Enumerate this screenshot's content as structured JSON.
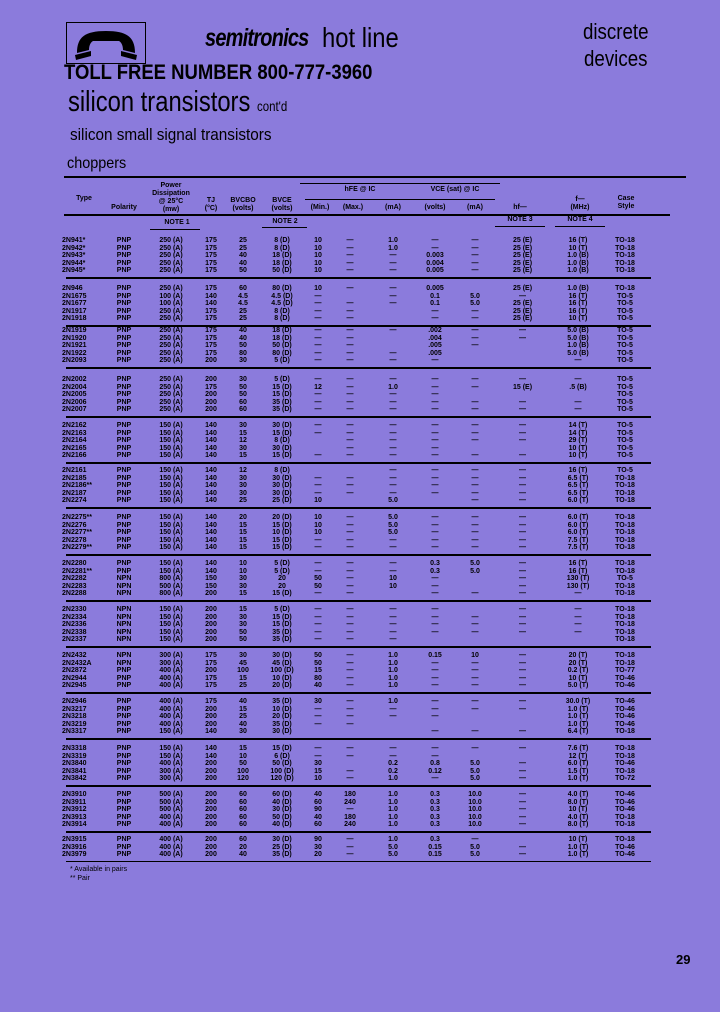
{
  "header": {
    "logo_icon": "telephone-handset-icon",
    "brand": "semitronics",
    "hotline": "hot line",
    "category_line1": "discrete",
    "category_line2": "devices",
    "toll_free": "TOLL FREE NUMBER 800-777-3960",
    "title": "silicon transistors",
    "title_suffix": "cont'd",
    "subtitle": "silicon small signal transistors",
    "section": "choppers"
  },
  "table": {
    "headers": {
      "type": "Type",
      "polarity": "Polarity",
      "pd": "Power Dissipation @ 25°C (mw)",
      "tj": "TJ (°C)",
      "bvcbo": "BVCBO (volts)",
      "bvceo": "BVCE (volts)",
      "hfe_group": "hFE @ IC",
      "hfe_min": "(Min.)",
      "hfe_max": "(Max.)",
      "hfe_ic": "(mA)",
      "vce_group": "VCE (sat) @ IC",
      "vce_volts": "(volts)",
      "vce_ic": "(mA)",
      "hfe_small": "hf—",
      "ft_group": "f—",
      "ft": "(MHz)",
      "case": "Case Style"
    },
    "notes": {
      "note1": "NOTE 1",
      "note2": "NOTE 2",
      "note3": "NOTE 3",
      "note4": "NOTE 4"
    },
    "groups": [
      [
        [
          "2N941*",
          "PNP",
          "250 (A)",
          "175",
          "25",
          "8 (D)",
          "10",
          "—",
          "1.0",
          "—",
          "—",
          "25 (E)",
          "16 (T)",
          "TO-18"
        ],
        [
          "2N942*",
          "PNP",
          "250 (A)",
          "175",
          "25",
          "8 (D)",
          "10",
          "—",
          "1.0",
          "—",
          "—",
          "25 (E)",
          "10 (T)",
          "TO-18"
        ],
        [
          "2N943*",
          "PNP",
          "250 (A)",
          "175",
          "40",
          "18 (D)",
          "10",
          "—",
          "—",
          "0.003",
          "—",
          "25 (E)",
          "1.0 (B)",
          "TO-18"
        ],
        [
          "2N944*",
          "PNP",
          "250 (A)",
          "175",
          "40",
          "18 (D)",
          "10",
          "—",
          "—",
          "0.004",
          "—",
          "25 (E)",
          "1.0 (B)",
          "TO-18"
        ],
        [
          "2N945*",
          "PNP",
          "250 (A)",
          "175",
          "50",
          "50 (D)",
          "10",
          "—",
          "—",
          "0.005",
          "—",
          "25 (E)",
          "1.0 (B)",
          "TO-18"
        ]
      ],
      [
        [
          "2N946",
          "PNP",
          "250 (A)",
          "175",
          "60",
          "80 (D)",
          "10",
          "—",
          "—",
          "0.005",
          "",
          "25 (E)",
          "1.0 (B)",
          "TO-18"
        ],
        [
          "2N1675",
          "PNP",
          "100 (A)",
          "140",
          "4.5",
          "4.5 (D)",
          "—",
          "",
          "—",
          "0.1",
          "5.0",
          "—",
          "16 (T)",
          "TO-5"
        ],
        [
          "2N1677",
          "PNP",
          "100 (A)",
          "140",
          "4.5",
          "4.5 (D)",
          "—",
          "—",
          "—",
          "0.1",
          "5.0",
          "25 (E)",
          "16 (T)",
          "TO-5"
        ],
        [
          "2N1917",
          "PNP",
          "250 (A)",
          "175",
          "25",
          "8 (D)",
          "—",
          "—",
          "",
          "—",
          "—",
          "25 (E)",
          "16 (T)",
          "TO-5"
        ],
        [
          "2N1918",
          "PNP",
          "250 (A)",
          "175",
          "25",
          "8 (D)",
          "—",
          "—",
          "",
          "—",
          "—",
          "25 (E)",
          "10 (T)",
          "TO-5"
        ]
      ],
      [
        [
          "2N1919",
          "PNP",
          "250 (A)",
          "175",
          "40",
          "18 (D)",
          "—",
          "—",
          "—",
          ".002",
          "—",
          "—",
          "5.0 (B)",
          "TO-5"
        ],
        [
          "2N1920",
          "PNP",
          "250 (A)",
          "175",
          "40",
          "18 (D)",
          "—",
          "—",
          "",
          ".004",
          "—",
          "—",
          "5.0 (B)",
          "TO-5"
        ],
        [
          "2N1921",
          "PNP",
          "250 (A)",
          "175",
          "50",
          "50 (D)",
          "—",
          "—",
          "",
          ".005",
          "—",
          "",
          "1.0 (B)",
          "TO-5"
        ],
        [
          "2N1922",
          "PNP",
          "250 (A)",
          "175",
          "80",
          "80 (D)",
          "—",
          "—",
          "—",
          ".005",
          "",
          "",
          "5.0 (B)",
          "TO-5"
        ],
        [
          "2N2093",
          "PNP",
          "250 (A)",
          "200",
          "30",
          "5 (D)",
          "—",
          "—",
          "—",
          "—",
          "",
          "",
          "—",
          "TO-5"
        ]
      ],
      [
        [
          "2N2002",
          "PNP",
          "250 (A)",
          "200",
          "30",
          "5 (D)",
          "—",
          "—",
          "—",
          "—",
          "—",
          "—",
          "—",
          "TO-5"
        ],
        [
          "2N2004",
          "PNP",
          "250 (A)",
          "175",
          "50",
          "15 (D)",
          "12",
          "—",
          "1.0",
          "—",
          "—",
          "15 (E)",
          ".5 (B)",
          "TO-5"
        ],
        [
          "2N2005",
          "PNP",
          "250 (A)",
          "200",
          "50",
          "15 (D)",
          "—",
          "—",
          "—",
          "—",
          "",
          "",
          "",
          "TO-5"
        ],
        [
          "2N2006",
          "PNP",
          "250 (A)",
          "200",
          "60",
          "35 (D)",
          "—",
          "—",
          "—",
          "—",
          "—",
          "—",
          "—",
          "TO-5"
        ],
        [
          "2N2007",
          "PNP",
          "250 (A)",
          "200",
          "60",
          "35 (D)",
          "—",
          "—",
          "—",
          "—",
          "—",
          "—",
          "—",
          "TO-5"
        ]
      ],
      [
        [
          "2N2162",
          "PNP",
          "150 (A)",
          "140",
          "30",
          "30 (D)",
          "—",
          "—",
          "—",
          "—",
          "—",
          "—",
          "14 (T)",
          "TO-5"
        ],
        [
          "2N2163",
          "PNP",
          "150 (A)",
          "140",
          "15",
          "15 (D)",
          "—",
          "—",
          "—",
          "—",
          "—",
          "—",
          "14 (T)",
          "TO-5"
        ],
        [
          "2N2164",
          "PNP",
          "150 (A)",
          "140",
          "12",
          "8 (D)",
          "",
          "—",
          "—",
          "—",
          "—",
          "—",
          "29 (T)",
          "TO-5"
        ],
        [
          "2N2165",
          "PNP",
          "150 (A)",
          "140",
          "30",
          "30 (D)",
          "",
          "—",
          "—",
          "—",
          "",
          "",
          "10 (T)",
          "TO-5"
        ],
        [
          "2N2166",
          "PNP",
          "150 (A)",
          "140",
          "15",
          "15 (D)",
          "—",
          "—",
          "—",
          "—",
          "—",
          "—",
          "10 (T)",
          "TO-5"
        ]
      ],
      [
        [
          "2N2161",
          "PNP",
          "150 (A)",
          "140",
          "12",
          "8 (D)",
          "",
          "",
          "—",
          "—",
          "—",
          "—",
          "16 (T)",
          "TO-5"
        ],
        [
          "2N2185",
          "PNP",
          "150 (A)",
          "140",
          "30",
          "30 (D)",
          "—",
          "—",
          "—",
          "—",
          "—",
          "—",
          "6.5 (T)",
          "TO-18"
        ],
        [
          "2N2186**",
          "PNP",
          "150 (A)",
          "140",
          "30",
          "30 (D)",
          "—",
          "—",
          "—",
          "—",
          "—",
          "—",
          "6.5 (T)",
          "TO-18"
        ],
        [
          "2N2187",
          "PNP",
          "150 (A)",
          "140",
          "30",
          "30 (D)",
          "—",
          "—",
          "—",
          "—",
          "—",
          "—",
          "6.5 (T)",
          "TO-18"
        ],
        [
          "2N2274",
          "PNP",
          "150 (A)",
          "140",
          "25",
          "25 (D)",
          "10",
          "",
          "5.0",
          "",
          "—",
          "—",
          "6.0 (T)",
          "TO-18"
        ]
      ],
      [
        [
          "2N2275**",
          "PNP",
          "150 (A)",
          "140",
          "20",
          "20 (D)",
          "10",
          "—",
          "5.0",
          "—",
          "—",
          "—",
          "6.0 (T)",
          "TO-18"
        ],
        [
          "2N2276",
          "PNP",
          "150 (A)",
          "140",
          "15",
          "15 (D)",
          "10",
          "—",
          "5.0",
          "—",
          "—",
          "—",
          "6.0 (T)",
          "TO-18"
        ],
        [
          "2N2277**",
          "PNP",
          "150 (A)",
          "140",
          "15",
          "10 (D)",
          "10",
          "—",
          "5.0",
          "—",
          "—",
          "—",
          "6.0 (T)",
          "TO-18"
        ],
        [
          "2N2278",
          "PNP",
          "150 (A)",
          "140",
          "15",
          "15 (D)",
          "—",
          "—",
          "—",
          "—",
          "—",
          "—",
          "7.5 (T)",
          "TO-18"
        ],
        [
          "2N2279**",
          "PNP",
          "150 (A)",
          "140",
          "15",
          "15 (D)",
          "—",
          "—",
          "—",
          "—",
          "—",
          "—",
          "7.5 (T)",
          "TO-18"
        ]
      ],
      [
        [
          "2N2280",
          "PNP",
          "150 (A)",
          "140",
          "10",
          "5 (D)",
          "—",
          "—",
          "—",
          "0.3",
          "5.0",
          "—",
          "16 (T)",
          "TO-18"
        ],
        [
          "2N2281**",
          "PNP",
          "150 (A)",
          "140",
          "10",
          "5 (D)",
          "—",
          "—",
          "—",
          "0.3",
          "5.0",
          "—",
          "16 (T)",
          "TO-18"
        ],
        [
          "2N2282",
          "NPN",
          "800 (A)",
          "150",
          "30",
          "20",
          "50",
          "—",
          "10",
          "—",
          "",
          "—",
          "130 (T)",
          "TO-5"
        ],
        [
          "2N2283",
          "NPN",
          "500 (A)",
          "150",
          "30",
          "20",
          "50",
          "—",
          "10",
          "—",
          "",
          "—",
          "130 (T)",
          "TO-18"
        ],
        [
          "2N2288",
          "NPN",
          "800 (A)",
          "200",
          "15",
          "15 (D)",
          "—",
          "—",
          "",
          "—",
          "—",
          "—",
          "—",
          "TO-18"
        ]
      ],
      [
        [
          "2N2330",
          "NPN",
          "150 (A)",
          "200",
          "15",
          "5 (D)",
          "—",
          "—",
          "—",
          "—",
          "",
          "—",
          "—",
          "TO-18"
        ],
        [
          "2N2334",
          "NPN",
          "150 (A)",
          "200",
          "30",
          "15 (D)",
          "—",
          "—",
          "—",
          "—",
          "—",
          "—",
          "—",
          "TO-18"
        ],
        [
          "2N2336",
          "NPN",
          "150 (A)",
          "200",
          "30",
          "15 (D)",
          "—",
          "—",
          "—",
          "—",
          "—",
          "—",
          "—",
          "TO-18"
        ],
        [
          "2N2338",
          "NPN",
          "150 (A)",
          "200",
          "50",
          "35 (D)",
          "—",
          "—",
          "—",
          "—",
          "—",
          "—",
          "—",
          "TO-18"
        ],
        [
          "2N2337",
          "NPN",
          "150 (A)",
          "200",
          "50",
          "35 (D)",
          "—",
          "—",
          "—",
          "",
          "",
          "",
          "",
          "TO-18"
        ]
      ],
      [
        [
          "2N2432",
          "NPN",
          "300 (A)",
          "175",
          "30",
          "30 (D)",
          "50",
          "—",
          "1.0",
          "0.15",
          "10",
          "—",
          "20 (T)",
          "TO-18"
        ],
        [
          "2N2432A",
          "NPN",
          "300 (A)",
          "175",
          "45",
          "45 (D)",
          "50",
          "—",
          "1.0",
          "—",
          "—",
          "—",
          "20 (T)",
          "TO-18"
        ],
        [
          "2N2872",
          "PNP",
          "400 (A)",
          "200",
          "100",
          "100 (D)",
          "15",
          "—",
          "1.0",
          "—",
          "—",
          "—",
          "0.2 (T)",
          "TO-77"
        ],
        [
          "2N2944",
          "PNP",
          "400 (A)",
          "175",
          "15",
          "10 (D)",
          "80",
          "—",
          "1.0",
          "—",
          "—",
          "—",
          "10 (T)",
          "TO-46"
        ],
        [
          "2N2945",
          "PNP",
          "400 (A)",
          "175",
          "25",
          "20 (D)",
          "40",
          "—",
          "1.0",
          "—",
          "—",
          "—",
          "5.0 (T)",
          "TO-46"
        ]
      ],
      [
        [
          "2N2946",
          "PNP",
          "400 (A)",
          "175",
          "40",
          "35 (D)",
          "30",
          "—",
          "1.0",
          "—",
          "—",
          "—",
          "30.0 (T)",
          "TO-46"
        ],
        [
          "2N3217",
          "PNP",
          "400 (A)",
          "200",
          "15",
          "10 (D)",
          "—",
          "—",
          "—",
          "—",
          "—",
          "—",
          "1.0 (T)",
          "TO-46"
        ],
        [
          "2N3218",
          "PNP",
          "400 (A)",
          "200",
          "25",
          "20 (D)",
          "—",
          "—",
          "—",
          "—",
          "",
          "",
          "1.0 (T)",
          "TO-46"
        ],
        [
          "2N3219",
          "PNP",
          "400 (A)",
          "200",
          "40",
          "35 (D)",
          "—",
          "—",
          "",
          "",
          "",
          "",
          "1.0 (T)",
          "TO-46"
        ],
        [
          "2N3317",
          "PNP",
          "150 (A)",
          "140",
          "30",
          "30 (D)",
          "",
          "",
          "",
          "—",
          "—",
          "—",
          "6.4 (T)",
          "TO-18"
        ]
      ],
      [
        [
          "2N3318",
          "PNP",
          "150 (A)",
          "140",
          "15",
          "15 (D)",
          "—",
          "—",
          "—",
          "—",
          "—",
          "—",
          "7.6 (T)",
          "TO-18"
        ],
        [
          "2N3319",
          "PNP",
          "150 (A)",
          "140",
          "10",
          "6 (D)",
          "—",
          "—",
          "—",
          "—",
          "",
          "",
          "12 (T)",
          "TO-18"
        ],
        [
          "2N3840",
          "PNP",
          "400 (A)",
          "200",
          "50",
          "50 (D)",
          "30",
          "",
          "0.2",
          "0.8",
          "5.0",
          "—",
          "6.0 (T)",
          "TO-46"
        ],
        [
          "2N3841",
          "PNP",
          "300 (A)",
          "200",
          "100",
          "100 (D)",
          "15",
          "—",
          "0.2",
          "0.12",
          "5.0",
          "—",
          "1.5 (T)",
          "TO-18"
        ],
        [
          "2N3842",
          "PNP",
          "300 (A)",
          "200",
          "120",
          "120 (D)",
          "10",
          "—",
          "1.0",
          "—",
          "5.0",
          "—",
          "1.0 (T)",
          "TO-72"
        ]
      ],
      [
        [
          "2N3910",
          "PNP",
          "500 (A)",
          "200",
          "60",
          "60 (D)",
          "40",
          "180",
          "1.0",
          "0.3",
          "10.0",
          "—",
          "4.0 (T)",
          "TO-46"
        ],
        [
          "2N3911",
          "PNP",
          "500 (A)",
          "200",
          "60",
          "40 (D)",
          "60",
          "240",
          "1.0",
          "0.3",
          "10.0",
          "—",
          "8.0 (T)",
          "TO-46"
        ],
        [
          "2N3912",
          "PNP",
          "500 (A)",
          "200",
          "60",
          "30 (D)",
          "90",
          "—",
          "1.0",
          "0.3",
          "10.0",
          "—",
          "10 (T)",
          "TO-46"
        ],
        [
          "2N3913",
          "PNP",
          "400 (A)",
          "200",
          "60",
          "50 (D)",
          "40",
          "180",
          "1.0",
          "0.3",
          "10.0",
          "—",
          "4.0 (T)",
          "TO-18"
        ],
        [
          "2N3914",
          "PNP",
          "400 (A)",
          "200",
          "60",
          "40 (D)",
          "60",
          "240",
          "1.0",
          "0.3",
          "10.0",
          "—",
          "8.0 (T)",
          "TO-18"
        ]
      ],
      [
        [
          "2N3915",
          "PNP",
          "400 (A)",
          "200",
          "60",
          "30 (D)",
          "90",
          "—",
          "1.0",
          "0.3",
          "—",
          "",
          "10 (T)",
          "TO-18"
        ],
        [
          "2N3916",
          "PNP",
          "400 (A)",
          "200",
          "20",
          "25 (D)",
          "30",
          "—",
          "5.0",
          "0.15",
          "5.0",
          "—",
          "1.0 (T)",
          "TO-46"
        ],
        [
          "2N3979",
          "PNP",
          "400 (A)",
          "200",
          "40",
          "35 (D)",
          "20",
          "—",
          "5.0",
          "0.15",
          "5.0",
          "—",
          "1.0 (T)",
          "TO-46"
        ]
      ]
    ]
  },
  "footnotes": [
    "* Available in pairs",
    "** Pair"
  ],
  "page_number": "29"
}
